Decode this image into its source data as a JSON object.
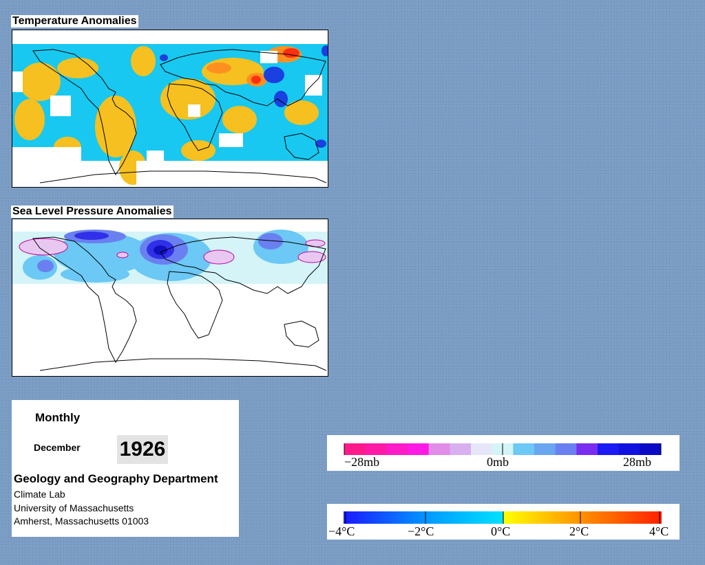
{
  "panels": {
    "temperature": {
      "title": "Temperature Anomalies"
    },
    "pressure": {
      "title": "Sea Level Pressure Anomalies"
    }
  },
  "info": {
    "period": "Monthly",
    "month": "December",
    "year": "1926",
    "department": "Geology and Geography Department",
    "lab": "Climate Lab",
    "university": "University of Massachusetts",
    "address": "Amherst, Massachusetts 01003"
  },
  "legends": {
    "pressure": {
      "unit": "mb",
      "labels": [
        "−28mb",
        "0mb",
        "28mb"
      ],
      "colors": [
        "#ff1a8c",
        "#ff1aa6",
        "#ff1ac8",
        "#ff1ae6",
        "#e08ce8",
        "#d8b0f0",
        "#e6e6fa",
        "#d4f4f8",
        "#6cc8f4",
        "#6aa6f0",
        "#6a80f0",
        "#7a2cf0",
        "#1a1af4",
        "#1010e0",
        "#0a0ac4"
      ]
    },
    "temperature": {
      "unit": "°C",
      "labels": [
        "−4°C",
        "−2°C",
        "0°C",
        "2°C",
        "4°C"
      ],
      "stops": [
        "#1a1aff",
        "#00a0ff",
        "#00e0ff",
        "#ffff00",
        "#ff9000",
        "#ff2000"
      ]
    }
  },
  "colors": {
    "background": "#7a9cc4",
    "warm": "#f5c020",
    "cool": "#18c8f0",
    "hot": "#ff4000",
    "cold": "#1a40e0"
  }
}
